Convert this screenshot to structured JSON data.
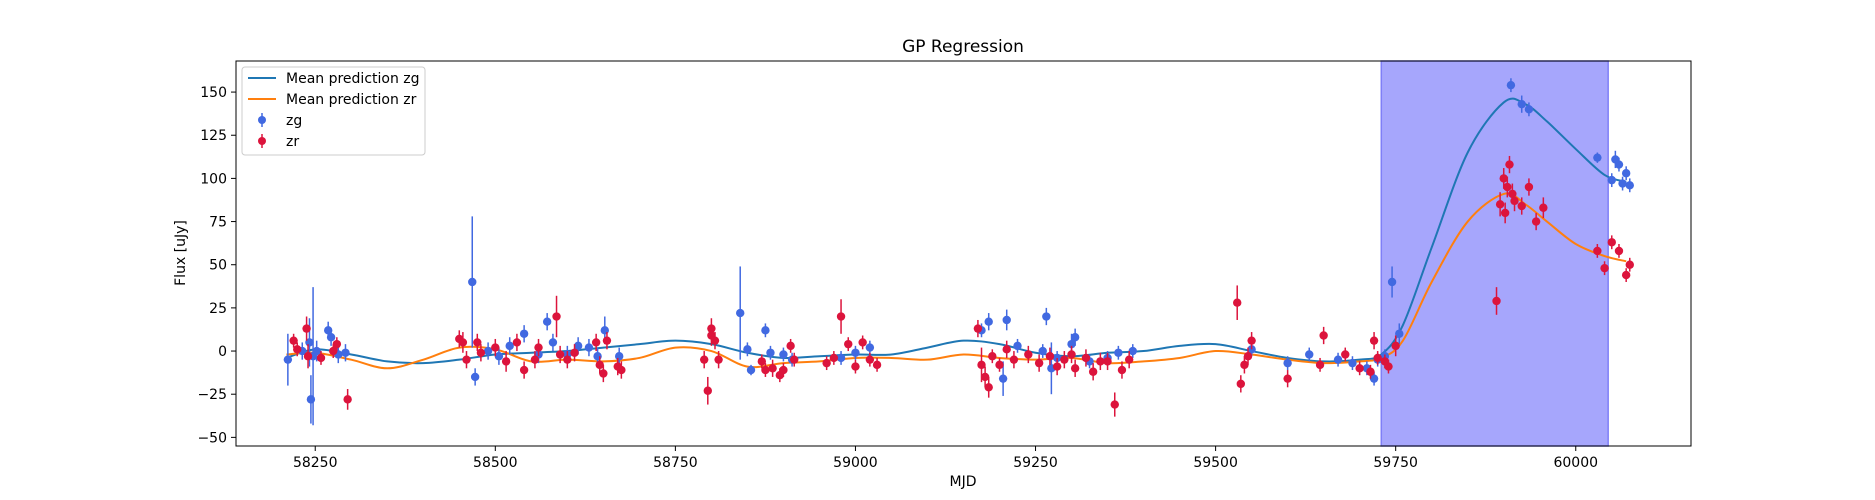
{
  "chart_data": {
    "type": "scatter",
    "title": "GP Regression",
    "xlabel": "MJD",
    "ylabel": "Flux [uJy]",
    "xlim": [
      58140,
      60160
    ],
    "ylim": [
      -55,
      168
    ],
    "xticks": [
      58250,
      58500,
      58750,
      59000,
      59250,
      59500,
      59750,
      60000
    ],
    "yticks": [
      -50,
      -25,
      0,
      25,
      50,
      75,
      100,
      125,
      150
    ],
    "grid": false,
    "legend_position": "top-left",
    "shaded_region": {
      "x_start": 59730,
      "x_end": 60045,
      "color": "#a6a6fc"
    },
    "lines": [
      {
        "name": "Mean prediction zg",
        "color": "#1f77b4",
        "x": [
          58210,
          58250,
          58300,
          58350,
          58400,
          58450,
          58500,
          58550,
          58600,
          58650,
          58700,
          58750,
          58800,
          58850,
          58900,
          58950,
          59000,
          59050,
          59100,
          59150,
          59200,
          59250,
          59300,
          59350,
          59400,
          59450,
          59500,
          59550,
          59600,
          59650,
          59700,
          59730,
          59760,
          59800,
          59850,
          59900,
          59930,
          59960,
          60000,
          60040,
          60070
        ],
        "y": [
          -4,
          1,
          -2,
          -6,
          -7,
          -5,
          -2,
          -1,
          0,
          2,
          4,
          6,
          4,
          -1,
          -4,
          -3,
          -2,
          -2,
          2,
          6,
          4,
          -1,
          -3,
          -1,
          0,
          3,
          4,
          0,
          -4,
          -6,
          -5,
          -2,
          15,
          60,
          115,
          144,
          143,
          133,
          117,
          102,
          98
        ]
      },
      {
        "name": "Mean prediction zr",
        "color": "#ff7f0e",
        "x": [
          58210,
          58250,
          58300,
          58350,
          58400,
          58450,
          58500,
          58550,
          58600,
          58650,
          58700,
          58750,
          58800,
          58850,
          58900,
          58950,
          59000,
          59050,
          59100,
          59150,
          59200,
          59250,
          59300,
          59350,
          59400,
          59450,
          59500,
          59550,
          59600,
          59650,
          59700,
          59730,
          59760,
          59800,
          59850,
          59900,
          59930,
          59960,
          60000,
          60040,
          60070
        ],
        "y": [
          -2,
          -1,
          -5,
          -10,
          -5,
          2,
          1,
          -6,
          -5,
          -6,
          -4,
          2,
          0,
          -9,
          -7,
          -6,
          -4,
          -4,
          -5,
          -2,
          -4,
          -5,
          -4,
          -7,
          -6,
          -4,
          0,
          -2,
          -5,
          -7,
          -6,
          -4,
          6,
          40,
          75,
          91,
          85,
          75,
          62,
          55,
          52
        ]
      }
    ],
    "series": [
      {
        "name": "zg",
        "color": "#4169e1",
        "points": [
          [
            58212,
            -5,
            15
          ],
          [
            58232,
            0,
            5
          ],
          [
            58242,
            5,
            14
          ],
          [
            58244,
            -28,
            14
          ],
          [
            58247,
            -3,
            40
          ],
          [
            58252,
            0,
            6
          ],
          [
            58268,
            12,
            5
          ],
          [
            58272,
            8,
            5
          ],
          [
            58282,
            -2,
            5
          ],
          [
            58292,
            -1,
            5
          ],
          [
            58468,
            40,
            38
          ],
          [
            58472,
            -15,
            5
          ],
          [
            58490,
            0,
            5
          ],
          [
            58505,
            -3,
            5
          ],
          [
            58520,
            3,
            5
          ],
          [
            58540,
            10,
            5
          ],
          [
            58560,
            -2,
            5
          ],
          [
            58572,
            17,
            5
          ],
          [
            58580,
            5,
            5
          ],
          [
            58600,
            -2,
            5
          ],
          [
            58615,
            3,
            5
          ],
          [
            58630,
            2,
            5
          ],
          [
            58642,
            -3,
            5
          ],
          [
            58652,
            12,
            8
          ],
          [
            58672,
            -3,
            5
          ],
          [
            58840,
            22,
            27
          ],
          [
            58850,
            1,
            4
          ],
          [
            58855,
            -11,
            3
          ],
          [
            58875,
            12,
            4
          ],
          [
            58882,
            -1,
            4
          ],
          [
            58900,
            -2,
            4
          ],
          [
            58912,
            -5,
            4
          ],
          [
            58980,
            -4,
            4
          ],
          [
            59000,
            -1,
            4
          ],
          [
            59020,
            2,
            4
          ],
          [
            59175,
            12,
            4
          ],
          [
            59185,
            17,
            5
          ],
          [
            59205,
            -16,
            10
          ],
          [
            59210,
            18,
            6
          ],
          [
            59225,
            3,
            4
          ],
          [
            59260,
            0,
            4
          ],
          [
            59265,
            20,
            5
          ],
          [
            59272,
            -10,
            15
          ],
          [
            59280,
            -4,
            4
          ],
          [
            59300,
            4,
            6
          ],
          [
            59305,
            8,
            5
          ],
          [
            59325,
            -6,
            4
          ],
          [
            59350,
            -4,
            4
          ],
          [
            59365,
            -1,
            4
          ],
          [
            59385,
            0,
            4
          ],
          [
            59550,
            1,
            4
          ],
          [
            59600,
            -7,
            4
          ],
          [
            59630,
            -2,
            4
          ],
          [
            59670,
            -5,
            4
          ],
          [
            59690,
            -7,
            4
          ],
          [
            59710,
            -10,
            4
          ],
          [
            59720,
            -16,
            4
          ],
          [
            59725,
            -5,
            4
          ],
          [
            59735,
            -3,
            4
          ],
          [
            59745,
            40,
            9
          ],
          [
            59755,
            10,
            6
          ],
          [
            59910,
            154,
            4
          ],
          [
            59925,
            143,
            5
          ],
          [
            59935,
            140,
            4
          ],
          [
            60030,
            112,
            3
          ],
          [
            60050,
            99,
            4
          ],
          [
            60055,
            111,
            5
          ],
          [
            60060,
            108,
            4
          ],
          [
            60065,
            97,
            4
          ],
          [
            60070,
            103,
            4
          ],
          [
            60075,
            96,
            4
          ]
        ]
      },
      {
        "name": "zr",
        "color": "#dc143c",
        "points": [
          [
            58220,
            6,
            4
          ],
          [
            58225,
            1,
            4
          ],
          [
            58238,
            13,
            7
          ],
          [
            58240,
            -3,
            7
          ],
          [
            58258,
            -4,
            4
          ],
          [
            58275,
            0,
            4
          ],
          [
            58280,
            4,
            4
          ],
          [
            58295,
            -28,
            6
          ],
          [
            58450,
            7,
            5
          ],
          [
            58455,
            5,
            6
          ],
          [
            58460,
            -5,
            5
          ],
          [
            58475,
            5,
            5
          ],
          [
            58480,
            -1,
            5
          ],
          [
            58500,
            2,
            5
          ],
          [
            58515,
            -6,
            6
          ],
          [
            58530,
            5,
            5
          ],
          [
            58540,
            -11,
            5
          ],
          [
            58555,
            -5,
            5
          ],
          [
            58560,
            2,
            5
          ],
          [
            58585,
            20,
            12
          ],
          [
            58590,
            -2,
            5
          ],
          [
            58600,
            -5,
            5
          ],
          [
            58610,
            -1,
            5
          ],
          [
            58640,
            5,
            5
          ],
          [
            58645,
            -8,
            5
          ],
          [
            58650,
            -13,
            5
          ],
          [
            58655,
            6,
            5
          ],
          [
            58670,
            -9,
            5
          ],
          [
            58675,
            -11,
            5
          ],
          [
            58790,
            -5,
            5
          ],
          [
            58795,
            -23,
            8
          ],
          [
            58800,
            13,
            6
          ],
          [
            58800,
            9,
            6
          ],
          [
            58805,
            6,
            5
          ],
          [
            58810,
            -5,
            5
          ],
          [
            58870,
            -6,
            4
          ],
          [
            58875,
            -11,
            4
          ],
          [
            58885,
            -10,
            5
          ],
          [
            58895,
            -14,
            4
          ],
          [
            58900,
            -11,
            4
          ],
          [
            58910,
            3,
            4
          ],
          [
            58915,
            -5,
            4
          ],
          [
            58960,
            -7,
            4
          ],
          [
            58970,
            -4,
            4
          ],
          [
            58980,
            20,
            10
          ],
          [
            58990,
            4,
            4
          ],
          [
            59000,
            -9,
            4
          ],
          [
            59010,
            5,
            4
          ],
          [
            59020,
            -5,
            4
          ],
          [
            59030,
            -8,
            4
          ],
          [
            59170,
            13,
            5
          ],
          [
            59175,
            -8,
            10
          ],
          [
            59180,
            -15,
            6
          ],
          [
            59185,
            -21,
            6
          ],
          [
            59190,
            -3,
            4
          ],
          [
            59200,
            -8,
            4
          ],
          [
            59210,
            1,
            5
          ],
          [
            59220,
            -5,
            5
          ],
          [
            59240,
            -2,
            5
          ],
          [
            59255,
            -7,
            5
          ],
          [
            59270,
            -3,
            5
          ],
          [
            59280,
            -9,
            5
          ],
          [
            59290,
            -5,
            5
          ],
          [
            59300,
            -2,
            5
          ],
          [
            59305,
            -10,
            5
          ],
          [
            59320,
            -4,
            5
          ],
          [
            59330,
            -12,
            5
          ],
          [
            59340,
            -6,
            5
          ],
          [
            59350,
            -6,
            5
          ],
          [
            59360,
            -31,
            7
          ],
          [
            59370,
            -11,
            5
          ],
          [
            59380,
            -5,
            5
          ],
          [
            59530,
            28,
            10
          ],
          [
            59535,
            -19,
            5
          ],
          [
            59540,
            -8,
            5
          ],
          [
            59545,
            -3,
            5
          ],
          [
            59550,
            6,
            5
          ],
          [
            59600,
            -16,
            5
          ],
          [
            59645,
            -8,
            4
          ],
          [
            59650,
            9,
            5
          ],
          [
            59680,
            -2,
            4
          ],
          [
            59700,
            -10,
            4
          ],
          [
            59715,
            -12,
            4
          ],
          [
            59720,
            6,
            5
          ],
          [
            59725,
            -4,
            4
          ],
          [
            59735,
            -6,
            4
          ],
          [
            59740,
            -9,
            4
          ],
          [
            59750,
            3,
            6
          ],
          [
            59890,
            29,
            8
          ],
          [
            59895,
            85,
            7
          ],
          [
            59900,
            100,
            6
          ],
          [
            59902,
            80,
            6
          ],
          [
            59905,
            95,
            6
          ],
          [
            59908,
            108,
            5
          ],
          [
            59912,
            91,
            6
          ],
          [
            59915,
            87,
            6
          ],
          [
            59925,
            84,
            5
          ],
          [
            59935,
            95,
            5
          ],
          [
            59945,
            75,
            5
          ],
          [
            59955,
            83,
            6
          ],
          [
            60030,
            58,
            4
          ],
          [
            60040,
            48,
            4
          ],
          [
            60050,
            63,
            4
          ],
          [
            60060,
            58,
            4
          ],
          [
            60070,
            44,
            4
          ],
          [
            60075,
            50,
            4
          ]
        ]
      }
    ],
    "legend": [
      "Mean prediction zg",
      "Mean prediction zr",
      "zg",
      "zr"
    ]
  }
}
